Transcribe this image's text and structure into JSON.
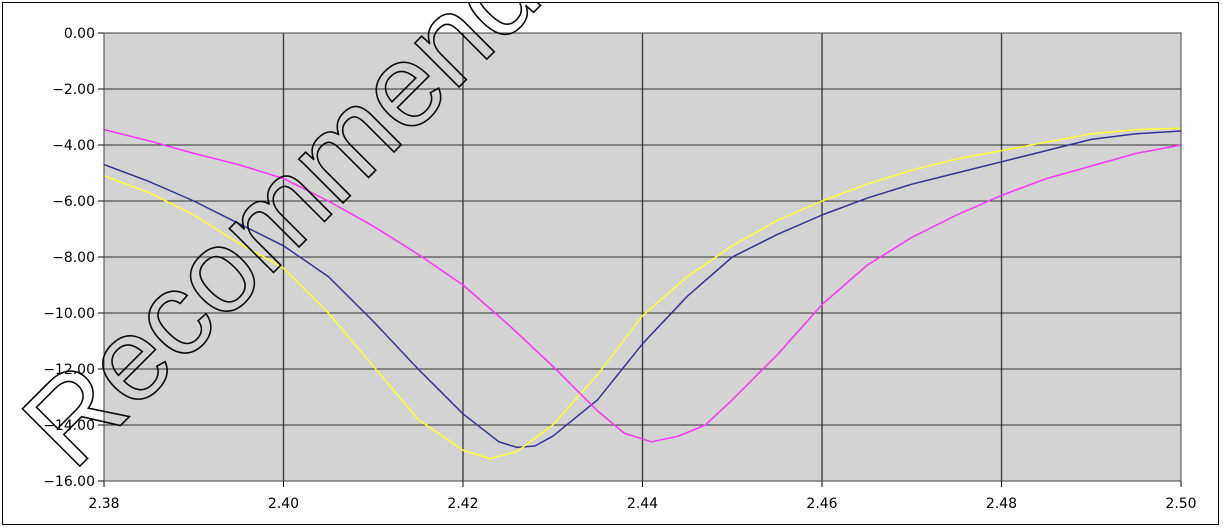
{
  "chart_data": {
    "type": "line",
    "title": "",
    "xlabel": "",
    "ylabel": "",
    "xlim": [
      2.38,
      2.5
    ],
    "ylim": [
      -16.0,
      0.0
    ],
    "grid": true,
    "legend": "none",
    "plot_background": "#d3d3d3",
    "x_ticks": [
      "2.38",
      "2.40",
      "2.42",
      "2.44",
      "2.46",
      "2.48",
      "2.50"
    ],
    "y_ticks": [
      "0.00",
      "−2.00",
      "−4.00",
      "−6.00",
      "−8.00",
      "−10.00",
      "−12.00",
      "−14.00",
      "−16.00"
    ],
    "series": [
      {
        "color": "#333399",
        "x": [
          2.38,
          2.385,
          2.39,
          2.395,
          2.4,
          2.405,
          2.41,
          2.415,
          2.42,
          2.424,
          2.426,
          2.428,
          2.43,
          2.435,
          2.44,
          2.445,
          2.45,
          2.455,
          2.46,
          2.465,
          2.47,
          2.475,
          2.48,
          2.485,
          2.49,
          2.495,
          2.5
        ],
        "y": [
          -4.7,
          -5.3,
          -6.0,
          -6.8,
          -7.6,
          -8.7,
          -10.3,
          -12.0,
          -13.6,
          -14.6,
          -14.8,
          -14.75,
          -14.4,
          -13.1,
          -11.1,
          -9.4,
          -8.0,
          -7.2,
          -6.5,
          -5.9,
          -5.4,
          -5.0,
          -4.6,
          -4.2,
          -3.8,
          -3.6,
          -3.5
        ]
      },
      {
        "color": "#ffff33",
        "x": [
          2.38,
          2.385,
          2.39,
          2.395,
          2.4,
          2.405,
          2.41,
          2.415,
          2.42,
          2.423,
          2.426,
          2.43,
          2.435,
          2.44,
          2.445,
          2.45,
          2.455,
          2.46,
          2.465,
          2.47,
          2.475,
          2.48,
          2.485,
          2.49,
          2.495,
          2.5
        ],
        "y": [
          -5.1,
          -5.7,
          -6.5,
          -7.5,
          -8.4,
          -10.0,
          -11.9,
          -13.8,
          -14.9,
          -15.2,
          -14.95,
          -14.0,
          -12.2,
          -10.1,
          -8.7,
          -7.6,
          -6.7,
          -6.0,
          -5.4,
          -4.9,
          -4.5,
          -4.2,
          -3.9,
          -3.6,
          -3.45,
          -3.4
        ]
      },
      {
        "color": "#ff33ff",
        "x": [
          2.38,
          2.385,
          2.39,
          2.395,
          2.4,
          2.405,
          2.41,
          2.415,
          2.42,
          2.425,
          2.43,
          2.435,
          2.438,
          2.441,
          2.444,
          2.447,
          2.45,
          2.455,
          2.46,
          2.465,
          2.47,
          2.475,
          2.48,
          2.485,
          2.49,
          2.495,
          2.5
        ],
        "y": [
          -3.45,
          -3.85,
          -4.3,
          -4.7,
          -5.2,
          -6.0,
          -6.9,
          -7.9,
          -9.0,
          -10.4,
          -11.9,
          -13.5,
          -14.3,
          -14.6,
          -14.4,
          -14.0,
          -13.1,
          -11.5,
          -9.7,
          -8.3,
          -7.3,
          -6.5,
          -5.8,
          -5.2,
          -4.75,
          -4.3,
          -4.0
        ]
      }
    ]
  },
  "watermark": {
    "text": "Recommended",
    "color": "#000000"
  }
}
